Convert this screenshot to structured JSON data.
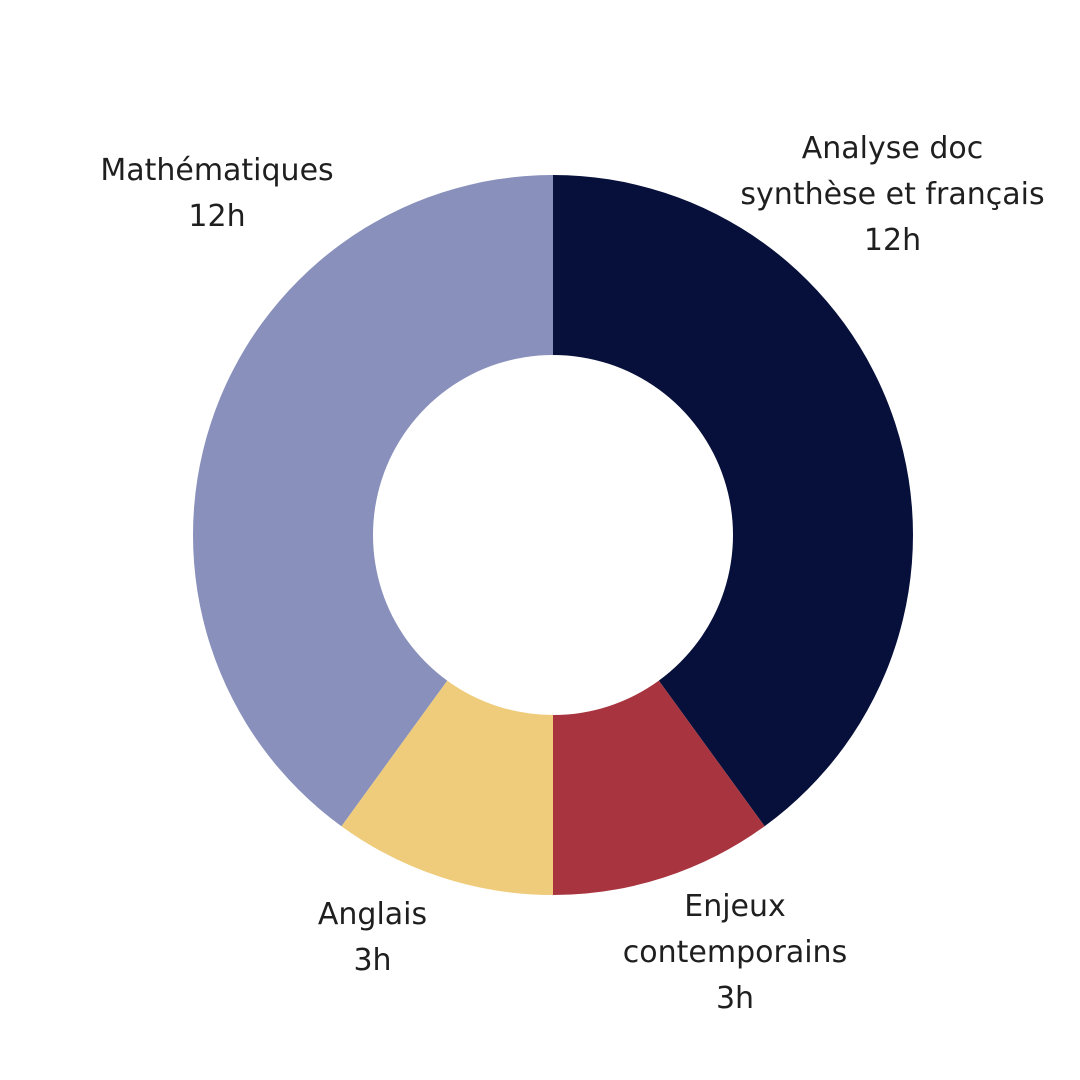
{
  "chart_data": {
    "type": "pie",
    "donut": true,
    "slices": [
      {
        "label_lines": [
          "Analyse doc",
          "synthèse et français"
        ],
        "value": 12,
        "value_label": "12h",
        "color": "#07103a"
      },
      {
        "label_lines": [
          "Enjeux",
          "contemporains"
        ],
        "value": 3,
        "value_label": "3h",
        "color": "#a7343f"
      },
      {
        "label_lines": [
          "Anglais"
        ],
        "value": 3,
        "value_label": "3h",
        "color": "#efcc7b"
      },
      {
        "label_lines": [
          "Mathématiques"
        ],
        "value": 12,
        "value_label": "12h",
        "color": "#8890bb"
      }
    ]
  }
}
